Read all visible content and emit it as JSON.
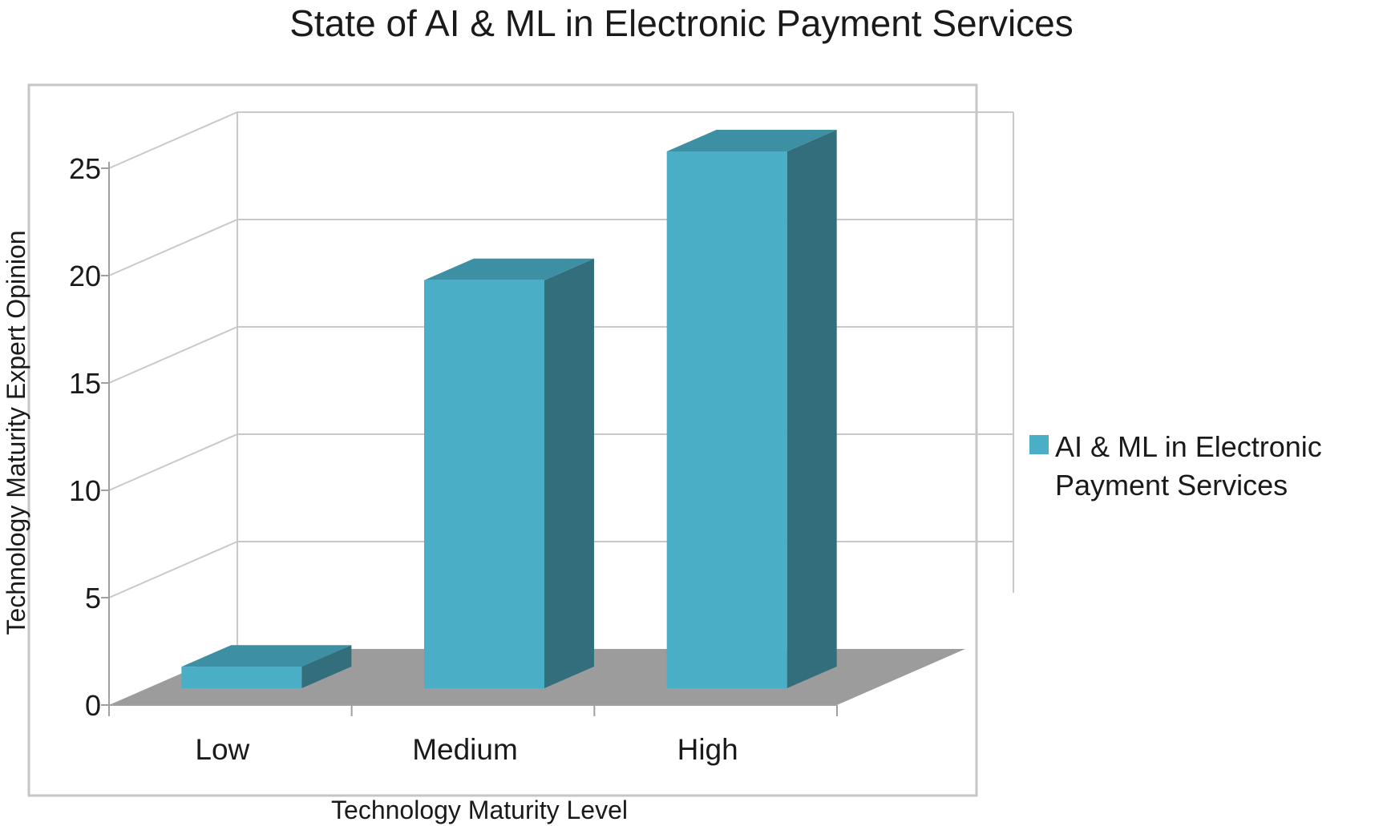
{
  "chart_data": {
    "type": "bar",
    "title": "State of AI & ML in Electronic Payment Services",
    "xlabel": "Technology Maturity Level",
    "ylabel": "Technology Maturity  Expert Opinion",
    "categories": [
      "Low",
      "Medium",
      "High"
    ],
    "series": [
      {
        "name": "AI  & ML in Electronic Payment Services",
        "legend_lines": [
          "AI  & ML in Electronic",
          "Payment Services"
        ],
        "values": [
          1,
          19,
          25
        ]
      }
    ],
    "ylim": [
      0,
      25
    ],
    "yticks": [
      0,
      5,
      10,
      15,
      20,
      25
    ],
    "grid": true,
    "legend_position": "right",
    "colors": {
      "bar_front": "#4aaec7",
      "bar_top": "#3d8fa3",
      "bar_side": "#336e7c",
      "floor": "#9c9c9c",
      "grid": "#c8c8c8"
    }
  }
}
